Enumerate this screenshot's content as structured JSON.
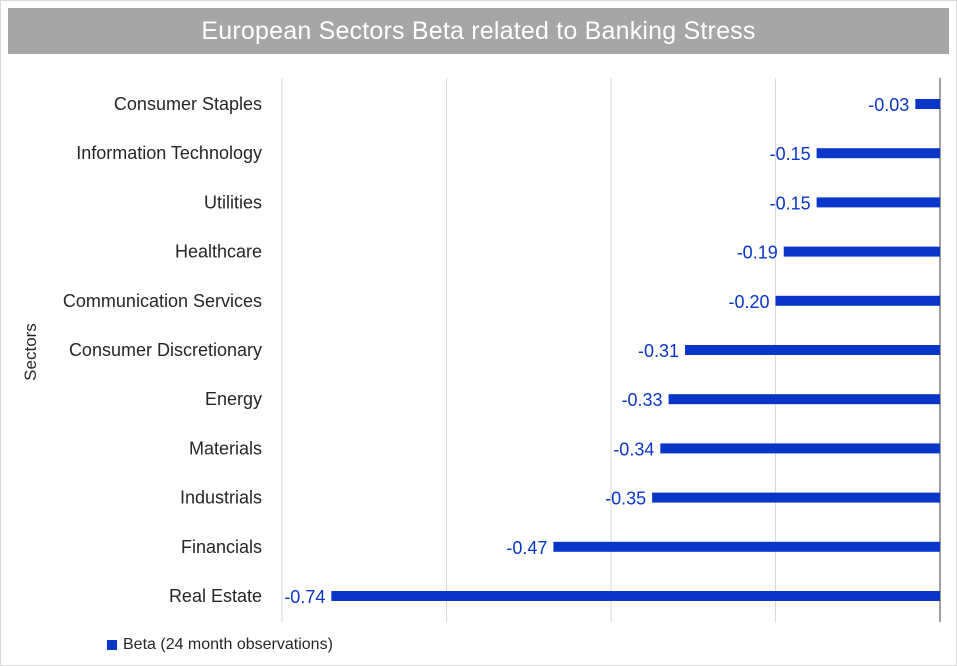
{
  "chart_data": {
    "type": "bar",
    "orientation": "horizontal",
    "title": "European Sectors Beta related to Banking Stress",
    "ylabel": "Sectors",
    "categories": [
      "Consumer Staples",
      "Information Technology",
      "Utilities",
      "Healthcare",
      "Communication Services",
      "Consumer Discretionary",
      "Energy",
      "Materials",
      "Industrials",
      "Financials",
      "Real Estate"
    ],
    "series": [
      {
        "name": "Beta (24 month observations)",
        "values": [
          -0.03,
          -0.15,
          -0.15,
          -0.19,
          -0.2,
          -0.31,
          -0.33,
          -0.34,
          -0.35,
          -0.47,
          -0.74
        ],
        "color": "#0a35c9"
      }
    ],
    "xlim": [
      -0.8,
      0.0
    ],
    "grid": true,
    "legend_position": "bottom-left",
    "colors": {
      "title_bg": "#a6a6a6",
      "label_color": "#0a35c9",
      "text": "#262626",
      "grid": "#d9d9d9"
    }
  }
}
